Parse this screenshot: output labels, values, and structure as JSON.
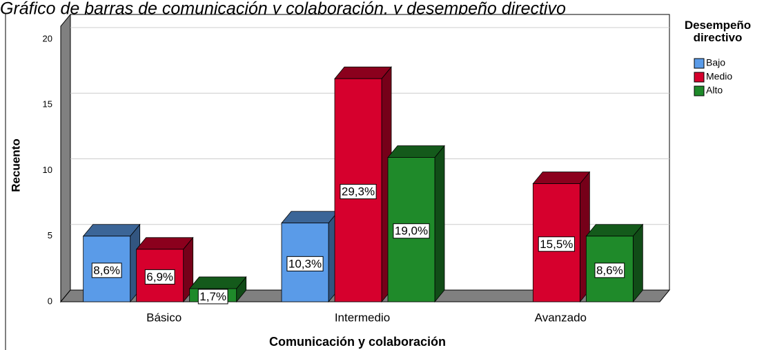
{
  "chart_data": {
    "type": "bar3d",
    "title": "Gráfico de barras de comunicación y colaboración, y desempeño directivo",
    "x_label": "Comunicación y colaboración",
    "y_label": "Recuento",
    "legend_title": "Desempeño directivo",
    "categories": [
      "Básico",
      "Intermedio",
      "Avanzado"
    ],
    "series": [
      {
        "name": "Bajo",
        "color": "#5a9be8",
        "values": [
          5,
          6,
          null
        ],
        "value_labels": [
          "8,6%",
          "10,3%",
          null
        ]
      },
      {
        "name": "Medio",
        "color": "#d6002d",
        "values": [
          4,
          17,
          9
        ],
        "value_labels": [
          "6,9%",
          "29,3%",
          "15,5%"
        ]
      },
      {
        "name": "Alto",
        "color": "#1f8a2a",
        "values": [
          1,
          11,
          5
        ],
        "value_labels": [
          "1,7%",
          "19,0%",
          "8,6%"
        ]
      }
    ],
    "ylim": [
      0,
      21
    ],
    "yticks": [
      0,
      5,
      10,
      15,
      20
    ],
    "grid": true,
    "legend": "right"
  }
}
